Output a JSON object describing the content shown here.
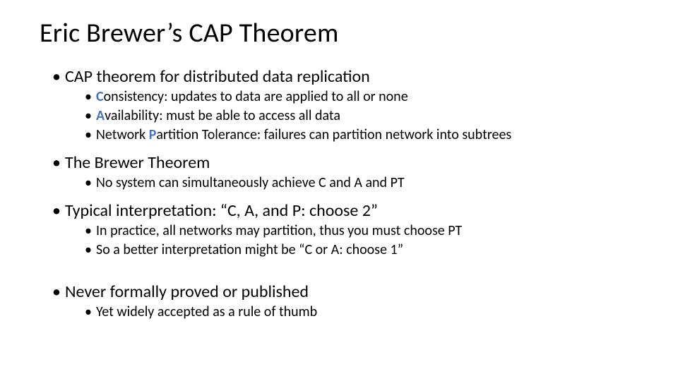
{
  "colors": {
    "background": "#ffffff",
    "text": "#000000",
    "highlight": "#4472c4"
  },
  "typography": {
    "title_fontsize": 38,
    "lvl1_fontsize": 24,
    "lvl2_fontsize": 20,
    "font_family": "Calibri"
  },
  "title": "Eric Brewer’s CAP Theorem",
  "bullets": [
    {
      "text": "CAP theorem for distributed data replication",
      "sub": [
        {
          "hl": "C",
          "rest": "onsistency: updates to data are applied to all or none"
        },
        {
          "hl": "A",
          "rest": "vailability: must be able to access all data"
        },
        {
          "pre": "Network ",
          "hl": "P",
          "rest": "artition Tolerance: failures can partition network into subtrees"
        }
      ]
    },
    {
      "text": "The Brewer Theorem",
      "sub": [
        {
          "rest": "No system can simultaneously achieve C and A and PT"
        }
      ]
    },
    {
      "text": "Typical interpretation: “C, A, and P: choose 2”",
      "sub": [
        {
          "rest": "In practice, all networks may partition, thus you must choose PT"
        },
        {
          "rest": "So a better interpretation might be “C or A: choose 1”"
        }
      ]
    },
    {
      "text": "Never formally proved or published",
      "gap_before": true,
      "sub": [
        {
          "rest": "Yet widely accepted as a rule of thumb"
        }
      ]
    }
  ]
}
